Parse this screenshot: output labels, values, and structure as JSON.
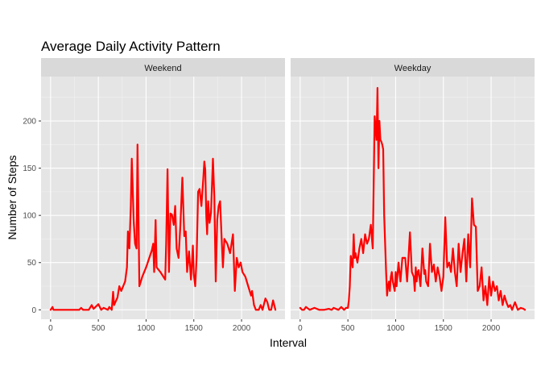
{
  "title": "Average Daily Activity Pattern",
  "xlabel": "Interval",
  "ylabel": "Number of Steps",
  "line_color": "#ff0000",
  "panel_bg": "#e5e5e5",
  "strip_bg": "#d9d9d9",
  "chart_data": {
    "type": "line",
    "title": "Average Daily Activity Pattern",
    "xlabel": "Interval",
    "ylabel": "Number of Steps",
    "xlim": [
      -100,
      2455
    ],
    "ylim": [
      -10,
      247
    ],
    "xticks": [
      0,
      500,
      1000,
      1500,
      2000
    ],
    "yticks": [
      0,
      50,
      100,
      150,
      200
    ],
    "grid": true,
    "facets": [
      "Weekend",
      "Weekday"
    ],
    "series": [
      {
        "panel": "Weekend",
        "x": [
          0,
          20,
          30,
          100,
          200,
          300,
          320,
          340,
          400,
          430,
          450,
          500,
          530,
          555,
          600,
          615,
          640,
          655,
          665,
          700,
          720,
          740,
          760,
          780,
          800,
          810,
          825,
          840,
          850,
          860,
          870,
          885,
          900,
          910,
          920,
          930,
          960,
          1000,
          1060,
          1075,
          1085,
          1100,
          1110,
          1150,
          1200,
          1210,
          1225,
          1240,
          1255,
          1270,
          1290,
          1305,
          1320,
          1340,
          1360,
          1380,
          1400,
          1415,
          1430,
          1450,
          1470,
          1490,
          1500,
          1515,
          1530,
          1545,
          1560,
          1580,
          1600,
          1610,
          1620,
          1630,
          1640,
          1650,
          1665,
          1680,
          1700,
          1715,
          1730,
          1745,
          1760,
          1775,
          1790,
          1805,
          1820,
          1850,
          1880,
          1910,
          1930,
          1950,
          1970,
          1990,
          2010,
          2040,
          2070,
          2100,
          2110,
          2130,
          2150,
          2180,
          2200,
          2220,
          2250,
          2270,
          2290,
          2310,
          2330,
          2355
        ],
        "y": [
          0,
          3,
          0,
          0,
          0,
          0,
          2,
          0,
          0,
          5,
          1,
          6,
          0,
          2,
          0,
          3,
          0,
          19,
          5,
          13,
          25,
          20,
          25,
          30,
          45,
          83,
          65,
          110,
          160,
          130,
          95,
          70,
          65,
          175,
          100,
          25,
          35,
          45,
          63,
          70,
          40,
          95,
          45,
          40,
          32,
          70,
          149,
          40,
          102,
          101,
          90,
          110,
          65,
          55,
          90,
          140,
          78,
          83,
          40,
          62,
          32,
          68,
          38,
          25,
          57,
          125,
          128,
          110,
          140,
          157,
          148,
          100,
          80,
          115,
          92,
          103,
          160,
          120,
          30,
          95,
          110,
          115,
          80,
          45,
          75,
          70,
          60,
          80,
          20,
          55,
          45,
          50,
          40,
          35,
          25,
          15,
          20,
          5,
          0,
          0,
          5,
          0,
          12,
          8,
          0,
          0,
          10,
          0
        ]
      },
      {
        "panel": "Weekday",
        "x": [
          0,
          20,
          40,
          60,
          100,
          150,
          200,
          250,
          300,
          330,
          350,
          400,
          430,
          460,
          480,
          500,
          510,
          520,
          530,
          540,
          550,
          560,
          570,
          580,
          600,
          620,
          640,
          660,
          680,
          700,
          720,
          740,
          760,
          780,
          800,
          810,
          820,
          830,
          840,
          850,
          860,
          870,
          880,
          900,
          910,
          920,
          930,
          940,
          950,
          960,
          970,
          980,
          990,
          1000,
          1010,
          1030,
          1050,
          1070,
          1100,
          1120,
          1150,
          1170,
          1190,
          1200,
          1210,
          1220,
          1230,
          1240,
          1260,
          1280,
          1300,
          1310,
          1320,
          1340,
          1360,
          1380,
          1400,
          1420,
          1440,
          1460,
          1480,
          1500,
          1520,
          1540,
          1560,
          1580,
          1600,
          1620,
          1640,
          1660,
          1680,
          1700,
          1720,
          1740,
          1760,
          1780,
          1800,
          1820,
          1840,
          1860,
          1880,
          1900,
          1920,
          1940,
          1960,
          1980,
          2000,
          2020,
          2040,
          2060,
          2080,
          2100,
          2120,
          2140,
          2160,
          2180,
          2200,
          2220,
          2250,
          2280,
          2310,
          2340,
          2355
        ],
        "y": [
          2,
          0,
          0,
          3,
          0,
          2,
          0,
          0,
          1,
          0,
          2,
          0,
          3,
          0,
          2,
          2,
          10,
          25,
          57,
          50,
          45,
          80,
          55,
          60,
          50,
          65,
          75,
          60,
          80,
          70,
          75,
          90,
          65,
          205,
          180,
          235,
          150,
          200,
          180,
          178,
          175,
          170,
          100,
          40,
          15,
          25,
          30,
          20,
          35,
          40,
          30,
          25,
          20,
          40,
          25,
          50,
          30,
          55,
          55,
          30,
          82,
          40,
          35,
          20,
          45,
          30,
          40,
          42,
          25,
          65,
          38,
          42,
          30,
          25,
          70,
          40,
          48,
          30,
          45,
          35,
          20,
          35,
          98,
          45,
          50,
          40,
          65,
          40,
          25,
          70,
          40,
          60,
          75,
          30,
          80,
          45,
          118,
          90,
          88,
          20,
          25,
          45,
          10,
          25,
          5,
          35,
          15,
          30,
          20,
          25,
          10,
          20,
          5,
          15,
          8,
          3,
          5,
          0,
          8,
          0,
          2,
          1,
          0
        ]
      }
    ]
  }
}
